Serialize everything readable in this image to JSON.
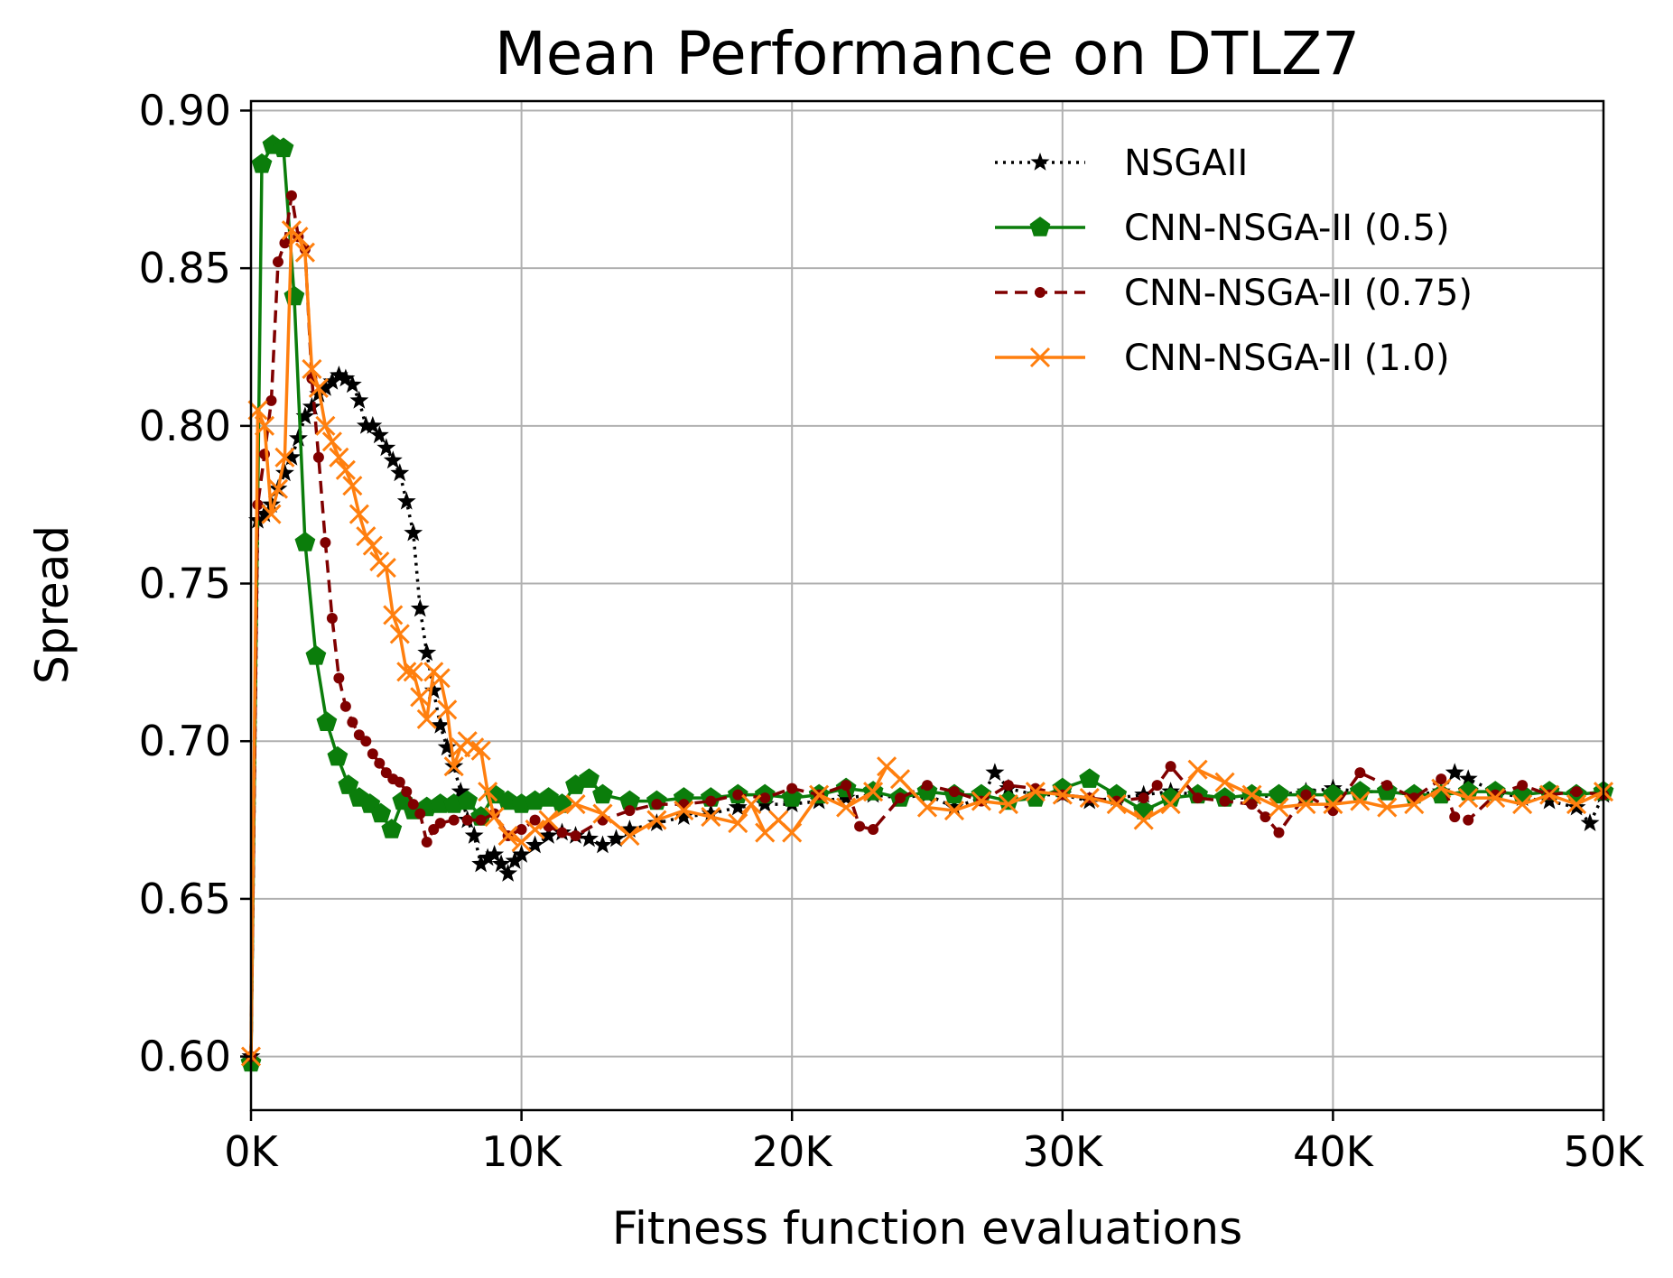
{
  "chart_data": {
    "type": "line",
    "title": "Mean Performance on DTLZ7",
    "xlabel": "Fitness function evaluations",
    "ylabel": "Spread",
    "xlim": [
      0,
      50000
    ],
    "ylim": [
      0.583,
      0.903
    ],
    "xticks": [
      0,
      10000,
      20000,
      30000,
      40000,
      50000
    ],
    "xtick_labels": [
      "0K",
      "10K",
      "20K",
      "30K",
      "40K",
      "50K"
    ],
    "yticks": [
      0.6,
      0.65,
      0.7,
      0.75,
      0.8,
      0.85,
      0.9
    ],
    "ytick_labels": [
      "0.60",
      "0.65",
      "0.70",
      "0.75",
      "0.80",
      "0.85",
      "0.90"
    ],
    "grid": true,
    "legend_position": "top-right",
    "series": [
      {
        "name": "NSGAII",
        "color": "#000000",
        "linestyle": "dotted",
        "marker": "star",
        "x": [
          0,
          250,
          500,
          750,
          1000,
          1250,
          1500,
          1750,
          2000,
          2250,
          2500,
          2750,
          3000,
          3250,
          3500,
          3750,
          4000,
          4250,
          4500,
          4750,
          5000,
          5250,
          5500,
          5750,
          6000,
          6250,
          6500,
          6750,
          7000,
          7250,
          7500,
          7750,
          8000,
          8250,
          8500,
          8750,
          9000,
          9250,
          9500,
          9750,
          10000,
          10500,
          11000,
          11500,
          12000,
          12500,
          13000,
          13500,
          14000,
          15000,
          16000,
          17000,
          18000,
          19000,
          20000,
          21000,
          22000,
          23000,
          24000,
          25000,
          26000,
          27000,
          27500,
          28000,
          29000,
          30000,
          31000,
          32000,
          33000,
          34000,
          35000,
          36000,
          37000,
          38000,
          39000,
          40000,
          41000,
          42000,
          43000,
          44000,
          44500,
          45000,
          46000,
          47000,
          48000,
          49000,
          49500,
          50000
        ],
        "y": [
          0.6,
          0.77,
          0.772,
          0.775,
          0.78,
          0.785,
          0.79,
          0.796,
          0.803,
          0.806,
          0.81,
          0.812,
          0.814,
          0.816,
          0.815,
          0.813,
          0.808,
          0.8,
          0.8,
          0.797,
          0.793,
          0.789,
          0.785,
          0.776,
          0.766,
          0.742,
          0.728,
          0.716,
          0.705,
          0.698,
          0.692,
          0.684,
          0.675,
          0.67,
          0.661,
          0.663,
          0.664,
          0.661,
          0.658,
          0.662,
          0.664,
          0.667,
          0.67,
          0.671,
          0.67,
          0.669,
          0.667,
          0.669,
          0.672,
          0.674,
          0.676,
          0.677,
          0.679,
          0.68,
          0.68,
          0.681,
          0.682,
          0.683,
          0.682,
          0.683,
          0.679,
          0.682,
          0.69,
          0.685,
          0.683,
          0.683,
          0.681,
          0.682,
          0.683,
          0.684,
          0.683,
          0.682,
          0.682,
          0.683,
          0.684,
          0.685,
          0.684,
          0.684,
          0.683,
          0.684,
          0.69,
          0.688,
          0.684,
          0.682,
          0.681,
          0.679,
          0.674,
          0.683
        ]
      },
      {
        "name": "CNN-NSGA-II (0.5)",
        "color": "#0b7d0b",
        "linestyle": "solid",
        "marker": "pentagon",
        "x": [
          0,
          400,
          800,
          1200,
          1600,
          2000,
          2400,
          2800,
          3200,
          3600,
          4000,
          4400,
          4800,
          5200,
          5600,
          6000,
          6500,
          7000,
          7500,
          8000,
          8500,
          9000,
          9500,
          10000,
          10500,
          11000,
          11500,
          12000,
          12500,
          13000,
          14000,
          15000,
          16000,
          17000,
          18000,
          19000,
          20000,
          21000,
          22000,
          23000,
          24000,
          25000,
          26000,
          27000,
          28000,
          29000,
          30000,
          31000,
          32000,
          33000,
          34000,
          35000,
          36000,
          37000,
          38000,
          39000,
          40000,
          41000,
          42000,
          43000,
          44000,
          45000,
          46000,
          47000,
          48000,
          49000,
          50000
        ],
        "y": [
          0.598,
          0.883,
          0.889,
          0.888,
          0.841,
          0.763,
          0.727,
          0.706,
          0.695,
          0.686,
          0.682,
          0.68,
          0.677,
          0.672,
          0.681,
          0.678,
          0.679,
          0.68,
          0.68,
          0.681,
          0.676,
          0.683,
          0.681,
          0.68,
          0.681,
          0.682,
          0.68,
          0.686,
          0.688,
          0.683,
          0.681,
          0.681,
          0.682,
          0.682,
          0.683,
          0.683,
          0.682,
          0.683,
          0.685,
          0.684,
          0.682,
          0.684,
          0.683,
          0.683,
          0.681,
          0.682,
          0.685,
          0.688,
          0.683,
          0.678,
          0.682,
          0.683,
          0.682,
          0.683,
          0.683,
          0.683,
          0.683,
          0.684,
          0.684,
          0.683,
          0.683,
          0.684,
          0.684,
          0.683,
          0.684,
          0.683,
          0.684
        ]
      },
      {
        "name": "CNN-NSGA-II (0.75)",
        "color": "#800000",
        "linestyle": "dashed",
        "marker": "circle",
        "x": [
          0,
          250,
          500,
          750,
          1000,
          1250,
          1500,
          1750,
          2000,
          2250,
          2500,
          2750,
          3000,
          3250,
          3500,
          3750,
          4000,
          4250,
          4500,
          4750,
          5000,
          5250,
          5500,
          5750,
          6000,
          6250,
          6500,
          6750,
          7000,
          7500,
          8000,
          8500,
          9000,
          9500,
          10000,
          10500,
          11000,
          11500,
          12000,
          13000,
          14000,
          15000,
          16000,
          17000,
          18000,
          19000,
          20000,
          21000,
          22000,
          22500,
          23000,
          24000,
          25000,
          26000,
          27000,
          28000,
          29000,
          30000,
          31000,
          32000,
          33000,
          33500,
          34000,
          35000,
          36000,
          37000,
          37500,
          38000,
          39000,
          40000,
          41000,
          42000,
          43000,
          44000,
          44500,
          45000,
          46000,
          47000,
          48000,
          49000,
          50000
        ],
        "y": [
          0.6,
          0.775,
          0.791,
          0.808,
          0.852,
          0.858,
          0.873,
          0.86,
          0.856,
          0.815,
          0.79,
          0.763,
          0.739,
          0.72,
          0.711,
          0.706,
          0.702,
          0.7,
          0.696,
          0.693,
          0.69,
          0.688,
          0.687,
          0.684,
          0.68,
          0.677,
          0.668,
          0.672,
          0.674,
          0.675,
          0.675,
          0.675,
          0.677,
          0.67,
          0.672,
          0.675,
          0.673,
          0.671,
          0.67,
          0.675,
          0.678,
          0.68,
          0.68,
          0.681,
          0.683,
          0.682,
          0.685,
          0.683,
          0.686,
          0.673,
          0.672,
          0.682,
          0.686,
          0.684,
          0.681,
          0.686,
          0.685,
          0.683,
          0.682,
          0.681,
          0.682,
          0.686,
          0.692,
          0.682,
          0.681,
          0.68,
          0.676,
          0.671,
          0.683,
          0.678,
          0.69,
          0.686,
          0.682,
          0.688,
          0.676,
          0.675,
          0.683,
          0.686,
          0.683,
          0.684,
          0.683
        ]
      },
      {
        "name": "CNN-NSGA-II (1.0)",
        "color": "#ff7f0e",
        "linestyle": "solid",
        "marker": "x",
        "x": [
          0,
          250,
          500,
          750,
          1000,
          1250,
          1500,
          1750,
          2000,
          2250,
          2500,
          2750,
          3000,
          3250,
          3500,
          3750,
          4000,
          4250,
          4500,
          4750,
          5000,
          5250,
          5500,
          5750,
          6000,
          6250,
          6500,
          6750,
          7000,
          7250,
          7500,
          7750,
          8000,
          8250,
          8500,
          8750,
          9000,
          9500,
          10000,
          10500,
          11000,
          12000,
          13000,
          14000,
          15000,
          16000,
          17000,
          18000,
          18500,
          19000,
          19500,
          20000,
          21000,
          22000,
          23000,
          23500,
          24000,
          25000,
          26000,
          27000,
          28000,
          29000,
          30000,
          31000,
          32000,
          33000,
          34000,
          35000,
          36000,
          37000,
          38000,
          39000,
          40000,
          41000,
          42000,
          43000,
          44000,
          45000,
          46000,
          47000,
          48000,
          49000,
          50000
        ],
        "y": [
          0.6,
          0.805,
          0.8,
          0.772,
          0.78,
          0.79,
          0.862,
          0.86,
          0.855,
          0.818,
          0.812,
          0.8,
          0.795,
          0.79,
          0.786,
          0.781,
          0.772,
          0.765,
          0.762,
          0.757,
          0.755,
          0.74,
          0.734,
          0.722,
          0.722,
          0.714,
          0.707,
          0.722,
          0.72,
          0.71,
          0.692,
          0.698,
          0.7,
          0.698,
          0.697,
          0.684,
          0.676,
          0.67,
          0.668,
          0.672,
          0.675,
          0.68,
          0.677,
          0.67,
          0.675,
          0.678,
          0.676,
          0.674,
          0.68,
          0.671,
          0.675,
          0.671,
          0.683,
          0.679,
          0.684,
          0.692,
          0.688,
          0.679,
          0.678,
          0.681,
          0.68,
          0.684,
          0.683,
          0.682,
          0.68,
          0.675,
          0.68,
          0.691,
          0.687,
          0.683,
          0.679,
          0.68,
          0.68,
          0.681,
          0.679,
          0.68,
          0.685,
          0.682,
          0.682,
          0.68,
          0.683,
          0.68,
          0.684
        ]
      }
    ]
  }
}
